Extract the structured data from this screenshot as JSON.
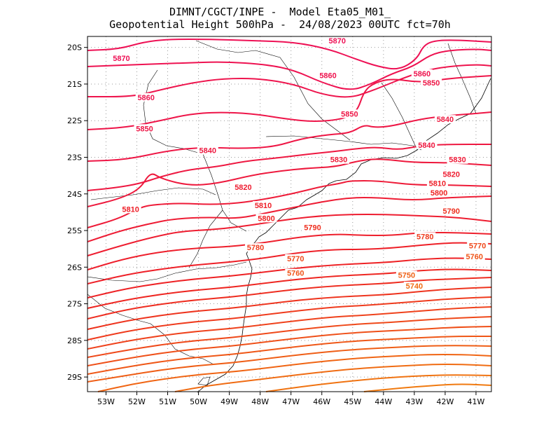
{
  "title": {
    "line1": "DIMNT/CGCT/INPE -  Model Eta05_M01_",
    "line2": "Geopotential Height 500hPa -  24/08/2023 00UTC fct=70h"
  },
  "axes": {
    "lon_ticks": [
      "53W",
      "52W",
      "51W",
      "50W",
      "49W",
      "48W",
      "47W",
      "46W",
      "45W",
      "44W",
      "43W",
      "42W",
      "41W"
    ],
    "lat_ticks": [
      "20S",
      "21S",
      "22S",
      "23S",
      "24S",
      "25S",
      "26S",
      "27S",
      "28S",
      "29S"
    ]
  },
  "map_data": {
    "variable": "Geopotential Height 500hPa",
    "lon_range": [
      -53.6,
      -40.5
    ],
    "lat_range": [
      -29.4,
      -19.7
    ],
    "contour_labels": [
      {
        "label": "5870",
        "lon": -52.5,
        "lat": -20.33
      },
      {
        "label": "5870",
        "lon": -45.5,
        "lat": -19.85
      },
      {
        "label": "5860",
        "lon": -45.8,
        "lat": -20.8
      },
      {
        "label": "5860",
        "lon": -51.7,
        "lat": -21.4
      },
      {
        "label": "5860",
        "lon": -42.75,
        "lat": -20.75
      },
      {
        "label": "5850",
        "lon": -42.45,
        "lat": -21.0
      },
      {
        "label": "5850",
        "lon": -45.1,
        "lat": -21.85
      },
      {
        "label": "5850",
        "lon": -51.75,
        "lat": -22.25
      },
      {
        "label": "5840",
        "lon": -42.0,
        "lat": -22.0
      },
      {
        "label": "5840",
        "lon": -42.6,
        "lat": -22.7
      },
      {
        "label": "5840",
        "lon": -49.7,
        "lat": -22.85
      },
      {
        "label": "5830",
        "lon": -45.45,
        "lat": -23.1
      },
      {
        "label": "5830",
        "lon": -41.6,
        "lat": -23.1
      },
      {
        "label": "5820",
        "lon": -41.8,
        "lat": -23.5
      },
      {
        "label": "5820",
        "lon": -48.55,
        "lat": -23.85
      },
      {
        "label": "5810",
        "lon": -42.25,
        "lat": -23.75
      },
      {
        "label": "5800",
        "lon": -42.2,
        "lat": -24.0
      },
      {
        "label": "5810",
        "lon": -52.2,
        "lat": -24.45
      },
      {
        "label": "5810",
        "lon": -47.9,
        "lat": -24.35
      },
      {
        "label": "5800",
        "lon": -47.8,
        "lat": -24.7
      },
      {
        "label": "5790",
        "lon": -41.8,
        "lat": -24.5
      },
      {
        "label": "5790",
        "lon": -46.3,
        "lat": -24.95
      },
      {
        "label": "5780",
        "lon": -42.65,
        "lat": -25.2
      },
      {
        "label": "5780",
        "lon": -48.15,
        "lat": -25.5
      },
      {
        "label": "5770",
        "lon": -40.95,
        "lat": -25.45
      },
      {
        "label": "5770",
        "lon": -46.85,
        "lat": -25.8
      },
      {
        "label": "5760",
        "lon": -41.05,
        "lat": -25.75
      },
      {
        "label": "5760",
        "lon": -46.85,
        "lat": -26.2
      },
      {
        "label": "5750",
        "lon": -43.25,
        "lat": -26.25
      },
      {
        "label": "5740",
        "lon": -43.0,
        "lat": -26.55
      }
    ]
  },
  "colors": {
    "contour_high": "#ee1155",
    "contour_mid": "#ee2222",
    "contour_low": "#f07a10",
    "grid": "#999999",
    "coast": "#000000"
  }
}
